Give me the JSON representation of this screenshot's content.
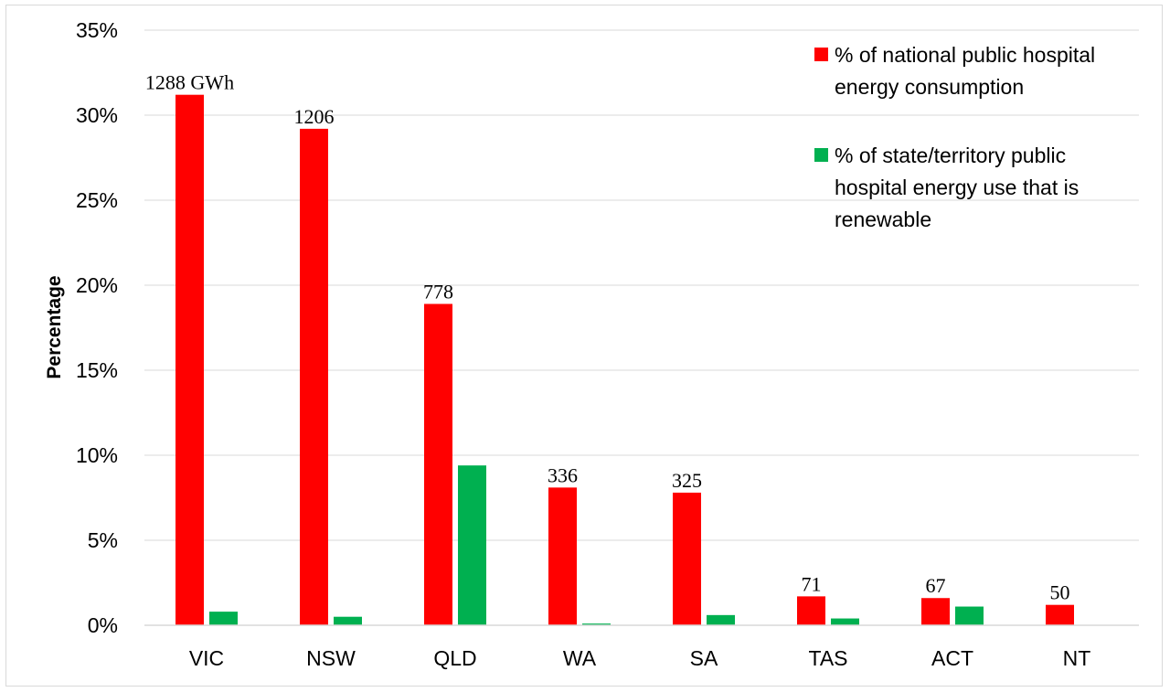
{
  "chart_data": {
    "type": "bar",
    "title": "",
    "xlabel": "",
    "ylabel": "Percentage",
    "ylim": [
      0,
      35
    ],
    "yticks": [
      "0%",
      "5%",
      "10%",
      "15%",
      "20%",
      "25%",
      "30%",
      "35%"
    ],
    "grid": "horizontal",
    "legend_position": "top-right",
    "categories": [
      "VIC",
      "NSW",
      "QLD",
      "WA",
      "SA",
      "TAS",
      "ACT",
      "NT"
    ],
    "series": [
      {
        "name_lines": [
          "% of national public hospital",
          "energy consumption"
        ],
        "color": "#ff0000",
        "values": [
          31.2,
          29.2,
          18.9,
          8.1,
          7.8,
          1.7,
          1.6,
          1.2
        ],
        "data_labels": [
          "1288 GWh",
          "1206",
          "778",
          "336",
          "325",
          "71",
          "67",
          "50"
        ]
      },
      {
        "name_lines": [
          "% of state/territory public",
          "hospital energy use that is",
          "renewable"
        ],
        "color": "#00b050",
        "values": [
          0.8,
          0.5,
          9.4,
          0.1,
          0.6,
          0.4,
          1.1,
          0
        ]
      }
    ]
  }
}
